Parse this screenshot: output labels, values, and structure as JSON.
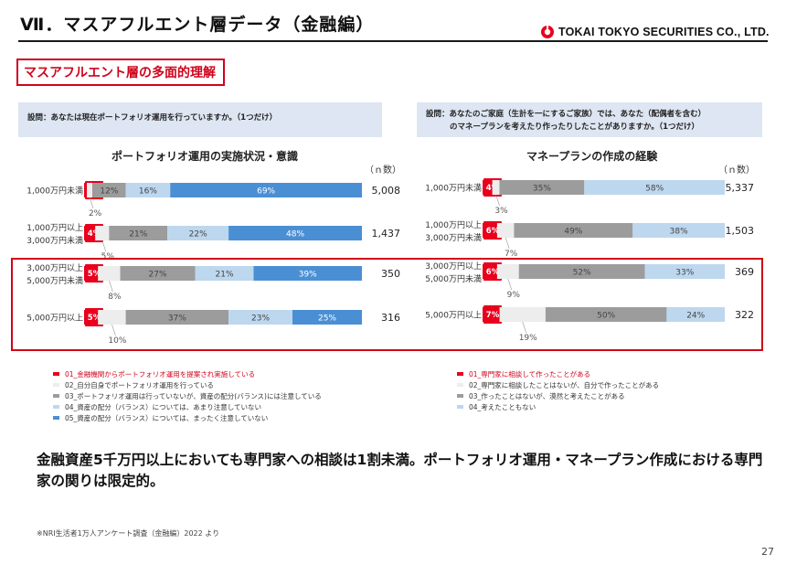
{
  "header": {
    "title": "Ⅶ．マスアフルエント層データ（金融編）",
    "company": "TOKAI TOKYO SECURITIES CO., LTD."
  },
  "section_label": "マスアフルエント層の多面的理解",
  "colors": {
    "accent_red": "#d0021b",
    "question_bg": "#dde6f2"
  },
  "chart_data": [
    {
      "type": "bar",
      "orientation": "horizontal-stacked-100",
      "question": "設問：あなたは現在ポートフォリオ運用を行っていますか。（1つだけ）",
      "title": "ポートフォリオ運用の実施状況・意識",
      "n_header": "（ｎ数）",
      "categories": [
        {
          "label": [
            "1,000万円未満"
          ],
          "n": "5,008",
          "highlighted": false
        },
        {
          "label": [
            "1,000万円以上",
            "3,000万円未満"
          ],
          "n": "1,437",
          "highlighted": false
        },
        {
          "label": [
            "3,000万円以上",
            "5,000万円未満"
          ],
          "n": "350",
          "highlighted": true
        },
        {
          "label": [
            "5,000万円以上"
          ],
          "n": "316",
          "highlighted": true
        }
      ],
      "series": [
        {
          "name": "01_金融機関からポートフォリオ運用を提案され実施している",
          "color": "#e8001c",
          "values": [
            1,
            4,
            5,
            5
          ],
          "labels": [
            "1%",
            "4%",
            "5%",
            "5%"
          ]
        },
        {
          "name": "02_自分自身でポートフォリオ運用を行っている",
          "color": "#ededed",
          "values": [
            2,
            5,
            8,
            10
          ],
          "labels": [
            "2%",
            "5%",
            "8%",
            "10%"
          ]
        },
        {
          "name": "03_ポートフォリオ運用は行っていないが、資産の配分(バランス)には注意している",
          "color": "#9c9c9c",
          "values": [
            12,
            21,
            27,
            37
          ],
          "labels": [
            "12%",
            "21%",
            "27%",
            "37%"
          ]
        },
        {
          "name": "04_資産の配分（バランス）については、あまり注意していない",
          "color": "#bdd7ee",
          "values": [
            16,
            22,
            21,
            23
          ],
          "labels": [
            "16%",
            "22%",
            "21%",
            "23%"
          ]
        },
        {
          "name": "05_資産の配分（バランス）については、まったく注意していない",
          "color": "#4a8fd4",
          "values": [
            69,
            48,
            39,
            25
          ],
          "labels": [
            "69%",
            "48%",
            "39%",
            "25%"
          ]
        }
      ]
    },
    {
      "type": "bar",
      "orientation": "horizontal-stacked-100",
      "question": [
        "設問：あなたのご家庭（生計を一にするご家族）では、あなた（配偶者を含む）",
        "のマネープランを考えたり作ったりしたことがありますか。（1つだけ）"
      ],
      "title": "マネープランの作成の経験",
      "n_header": "（ｎ数）",
      "categories": [
        {
          "label": [
            "1,000万円未満"
          ],
          "n": "5,337",
          "highlighted": false
        },
        {
          "label": [
            "1,000万円以上",
            "3,000万円未満"
          ],
          "n": "1,503",
          "highlighted": false
        },
        {
          "label": [
            "3,000万円以上",
            "5,000万円未満"
          ],
          "n": "369",
          "highlighted": true
        },
        {
          "label": [
            "5,000万円以上"
          ],
          "n": "322",
          "highlighted": true
        }
      ],
      "series": [
        {
          "name": "01_専門家に相談して作ったことがある",
          "color": "#e8001c",
          "values": [
            4,
            6,
            6,
            7
          ],
          "labels": [
            "4%",
            "6%",
            "6%",
            "7%"
          ]
        },
        {
          "name": "02_専門家に相談したことはないが、自分で作ったことがある",
          "color": "#ededed",
          "values": [
            3,
            7,
            9,
            19
          ],
          "labels": [
            "3%",
            "7%",
            "9%",
            "19%"
          ]
        },
        {
          "name": "03_作ったことはないが、漠然と考えたことがある",
          "color": "#9c9c9c",
          "values": [
            35,
            49,
            52,
            50
          ],
          "labels": [
            "35%",
            "49%",
            "52%",
            "50%"
          ]
        },
        {
          "name": "04_考えたこともない",
          "color": "#bdd7ee",
          "values": [
            58,
            38,
            33,
            24
          ],
          "labels": [
            "58%",
            "38%",
            "33%",
            "24%"
          ]
        }
      ]
    }
  ],
  "conclusion": "金融資産5千万円以上においても専門家への相談は1割未満。ポートフォリオ運用・マネープラン作成における専門家の関りは限定的。",
  "footnote": "※NRI生活者1万人アンケート調査（金融編）2022 より",
  "page_number": "27"
}
